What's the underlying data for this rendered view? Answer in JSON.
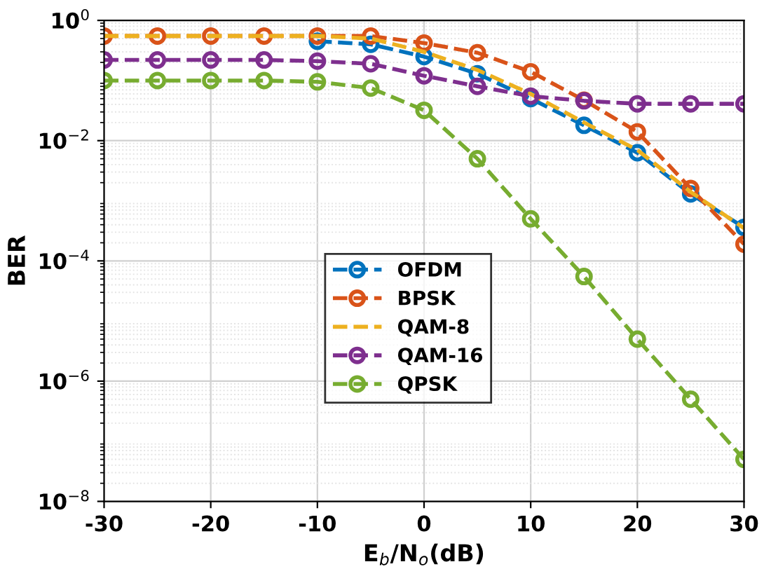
{
  "chart_data": {
    "type": "line",
    "xlabel": "E$_{b}$/N$_{o}$(dB)",
    "ylabel": "BER",
    "log": "y",
    "grid": true,
    "legend": "right",
    "marker": "circle",
    "line_style": "dashed",
    "x": [
      -30,
      -25,
      -20,
      -15,
      -10,
      -5,
      0,
      5,
      10,
      15,
      20,
      25,
      30
    ],
    "xlim": [
      -30,
      30
    ],
    "xticks": [
      -30,
      -20,
      -10,
      0,
      10,
      20,
      30
    ],
    "ylim": [
      1e-08,
      1
    ],
    "yticks": [
      {
        "value": 1e-08,
        "label": "10$^{−8}$"
      },
      {
        "value": 1e-06,
        "label": "10$^{−6}$"
      },
      {
        "value": 0.0001,
        "label": "10$^{−4}$"
      },
      {
        "value": 0.01,
        "label": "10$^{−2}$"
      },
      {
        "value": 1,
        "label": "10$^{0}$"
      }
    ],
    "series": [
      {
        "name": "OFDM",
        "color": "#0072bd",
        "values": [
          null,
          null,
          null,
          null,
          0.45,
          0.4,
          0.25,
          0.13,
          0.05,
          0.018,
          0.0063,
          0.0013,
          0.00036
        ]
      },
      {
        "name": "BPSK",
        "color": "#d95319",
        "values": [
          0.55,
          0.55,
          0.55,
          0.55,
          0.55,
          0.55,
          0.42,
          0.29,
          0.14,
          0.047,
          0.014,
          0.0016,
          0.00019
        ]
      },
      {
        "name": "QAM-8",
        "color": "#edb120",
        "marker": "none",
        "values": [
          0.55,
          0.55,
          0.55,
          0.55,
          0.55,
          0.5,
          0.3,
          0.15,
          0.06,
          0.02,
          0.007,
          0.0014,
          0.00035
        ]
      },
      {
        "name": "QAM-16",
        "color": "#7e2f8e",
        "values": [
          0.22,
          0.22,
          0.22,
          0.22,
          0.21,
          0.19,
          0.12,
          0.08,
          0.055,
          0.046,
          0.041,
          0.041,
          0.041
        ]
      },
      {
        "name": "QPSK",
        "color": "#77ac30",
        "values": [
          0.1,
          0.1,
          0.1,
          0.1,
          0.095,
          0.075,
          0.032,
          0.005,
          0.0005,
          5.5e-05,
          5e-06,
          5e-07,
          5e-08
        ]
      }
    ]
  }
}
